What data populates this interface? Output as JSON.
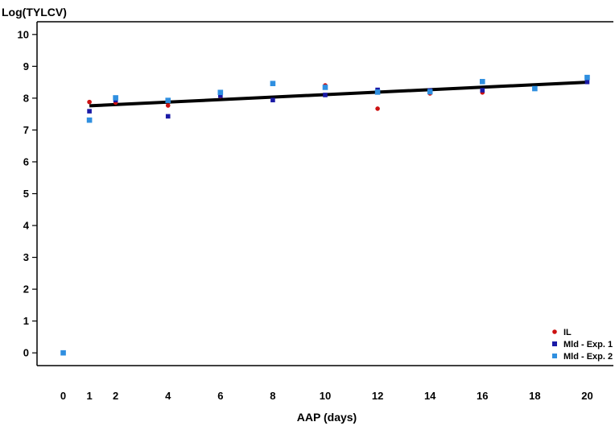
{
  "chart_data": {
    "type": "scatter",
    "ylabel": "Log(TYLCV)",
    "xlabel": "AAP (days)",
    "xlim": [
      -1,
      21
    ],
    "ylim": [
      -0.4,
      10.4
    ],
    "xticks": [
      0,
      1,
      2,
      4,
      6,
      8,
      10,
      12,
      14,
      16,
      18,
      20
    ],
    "yticks": [
      0,
      1,
      2,
      3,
      4,
      5,
      6,
      7,
      8,
      9,
      10
    ],
    "grid": false,
    "legend_position": "bottom-right",
    "series": [
      {
        "name": "IL",
        "marker": "circle",
        "color": "#cc1111",
        "points": [
          [
            1,
            7.88
          ],
          [
            2,
            7.86
          ],
          [
            4,
            7.77
          ],
          [
            6,
            8.06
          ],
          [
            10,
            8.4
          ],
          [
            12,
            7.67
          ],
          [
            14,
            8.15
          ],
          [
            16,
            8.18
          ]
        ]
      },
      {
        "name": "Mld - Exp. 1",
        "marker": "square",
        "color": "#1a1aa6",
        "points": [
          [
            1,
            7.59
          ],
          [
            2,
            7.94
          ],
          [
            4,
            7.43
          ],
          [
            6,
            8.08
          ],
          [
            8,
            7.94
          ],
          [
            10,
            8.1
          ],
          [
            12,
            8.26
          ],
          [
            14,
            8.24
          ],
          [
            16,
            8.25
          ],
          [
            20,
            8.51
          ]
        ]
      },
      {
        "name": "Mld - Exp. 2",
        "marker": "square",
        "color": "#2f8fe0",
        "points": [
          [
            0,
            0.0
          ],
          [
            1,
            7.31
          ],
          [
            2,
            8.01
          ],
          [
            4,
            7.93
          ],
          [
            6,
            8.18
          ],
          [
            8,
            8.46
          ],
          [
            10,
            8.34
          ],
          [
            12,
            8.19
          ],
          [
            14,
            8.2
          ],
          [
            16,
            8.52
          ],
          [
            18,
            8.3
          ],
          [
            20,
            8.65
          ]
        ]
      }
    ],
    "trendline": {
      "color": "#000000",
      "start": [
        1,
        7.76
      ],
      "end": [
        20,
        8.5
      ]
    }
  }
}
